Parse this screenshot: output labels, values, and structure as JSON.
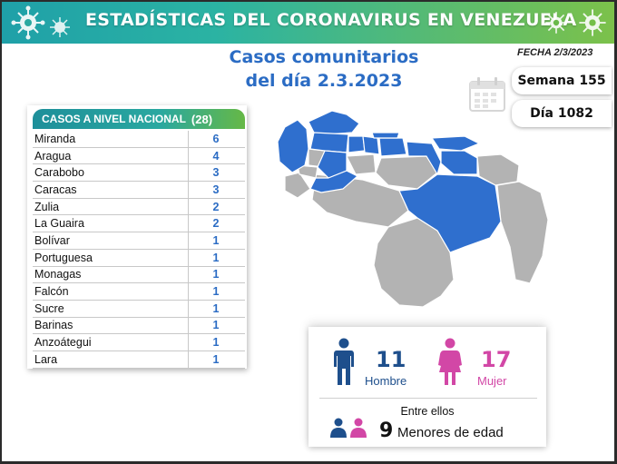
{
  "banner": {
    "title": "ESTADÍSTICAS DEL CORONAVIRUS EN VENEZUELA"
  },
  "subtitle": {
    "line1": "Casos comunitarios",
    "line2": "del día 2.3.2023"
  },
  "fecha": "FECHA 2/3/2023",
  "semana": "Semana 155",
  "dia": "Día 1082",
  "table": {
    "header": "CASOS A NIVEL NACIONAL",
    "total": "(28)",
    "rows": [
      {
        "name": "Miranda",
        "count": "6"
      },
      {
        "name": "Aragua",
        "count": "4"
      },
      {
        "name": "Carabobo",
        "count": "3"
      },
      {
        "name": "Caracas",
        "count": "3"
      },
      {
        "name": "Zulia",
        "count": "2"
      },
      {
        "name": "La Guaira",
        "count": "2"
      },
      {
        "name": "Bolívar",
        "count": "1"
      },
      {
        "name": "Portuguesa",
        "count": "1"
      },
      {
        "name": "Monagas",
        "count": "1"
      },
      {
        "name": "Falcón",
        "count": "1"
      },
      {
        "name": "Sucre",
        "count": "1"
      },
      {
        "name": "Barinas",
        "count": "1"
      },
      {
        "name": "Anzoátegui",
        "count": "1"
      },
      {
        "name": "Lara",
        "count": "1"
      }
    ]
  },
  "gender": {
    "male_count": "11",
    "male_label": "Hombre",
    "female_count": "17",
    "female_label": "Mujer",
    "entre": "Entre ellos",
    "minors_count": "9",
    "minors_label": "Menores de edad"
  },
  "colors": {
    "accent_blue": "#2b6cc4",
    "map_affected": "#2f6fce",
    "map_other": "#b3b3b3",
    "male": "#1e4f8c",
    "female": "#d247a6"
  },
  "icons": [
    "virus-icon",
    "calendar-icon",
    "male-icon",
    "female-icon",
    "family-icon"
  ]
}
